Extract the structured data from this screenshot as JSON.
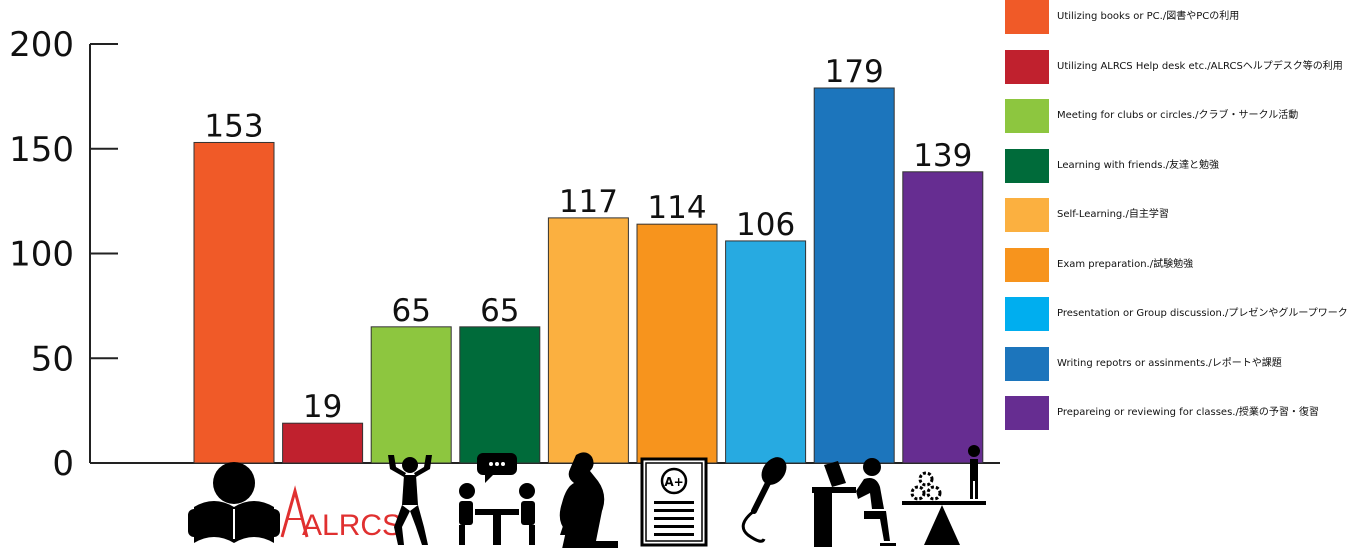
{
  "chart_data": {
    "type": "bar",
    "categories": [
      "Utilizing books or PC./図書やPCの利用",
      "Utilizing ALRCS Help desk etc./ALRCSヘルプデスク等の利用",
      "Meeting for clubs or circles./クラブ・サークル活動",
      "Learning with friends./友達と勉強",
      "Self-Learning./自主学習",
      "Exam preparation./試験勉強",
      "Presentation or Group discussion./プレゼンやグループワーク",
      "Writing repotrs or assinments./レポートや課題",
      "Prepareing or reviewing for classes./授業の予習・復習"
    ],
    "values": [
      153,
      19,
      65,
      65,
      117,
      114,
      106,
      179,
      139
    ],
    "colors": [
      "#f05a28",
      "#c0212e",
      "#8dc63f",
      "#006b3a",
      "#fbb040",
      "#f7941d",
      "#27aae1",
      "#1c75bc",
      "#662d91"
    ],
    "icons": [
      "reading-person-icon",
      "alrcs-logo",
      "flexing-person-icon",
      "two-people-talking-icon",
      "thinker-statue-icon",
      "graded-exam-paper-icon",
      "microphone-icon",
      "person-at-computer-desk-icon",
      "balance-scale-gears-icon"
    ],
    "icon_text": {
      "alrcs": "ALRCS"
    },
    "yticks": [
      0,
      50,
      100,
      150,
      200
    ],
    "ylim": [
      0,
      200
    ],
    "title": "",
    "xlabel": "",
    "ylabel": "",
    "grid": false,
    "legend_position": "right"
  },
  "legend": {
    "items": [
      {
        "label": "Utilizing books or PC./図書やPCの利用",
        "color": "#f05a28"
      },
      {
        "label": "Utilizing ALRCS Help desk etc./ALRCSヘルプデスク等の利用",
        "color": "#c0212e"
      },
      {
        "label": "Meeting for clubs or circles./クラブ・サークル活動",
        "color": "#8dc63f"
      },
      {
        "label": "Learning with friends./友達と勉強",
        "color": "#006b3a"
      },
      {
        "label": "Self-Learning./自主学習",
        "color": "#fbb040"
      },
      {
        "label": "Exam preparation./試験勉強",
        "color": "#f7941d"
      },
      {
        "label": "Presentation or Group discussion./プレゼンやグループワーク",
        "color": "#00aeef"
      },
      {
        "label": "Writing repotrs or assinments./レポートや課題",
        "color": "#1c75bc"
      },
      {
        "label": "Prepareing or reviewing for classes./授業の予習・復習",
        "color": "#662d91"
      }
    ]
  }
}
